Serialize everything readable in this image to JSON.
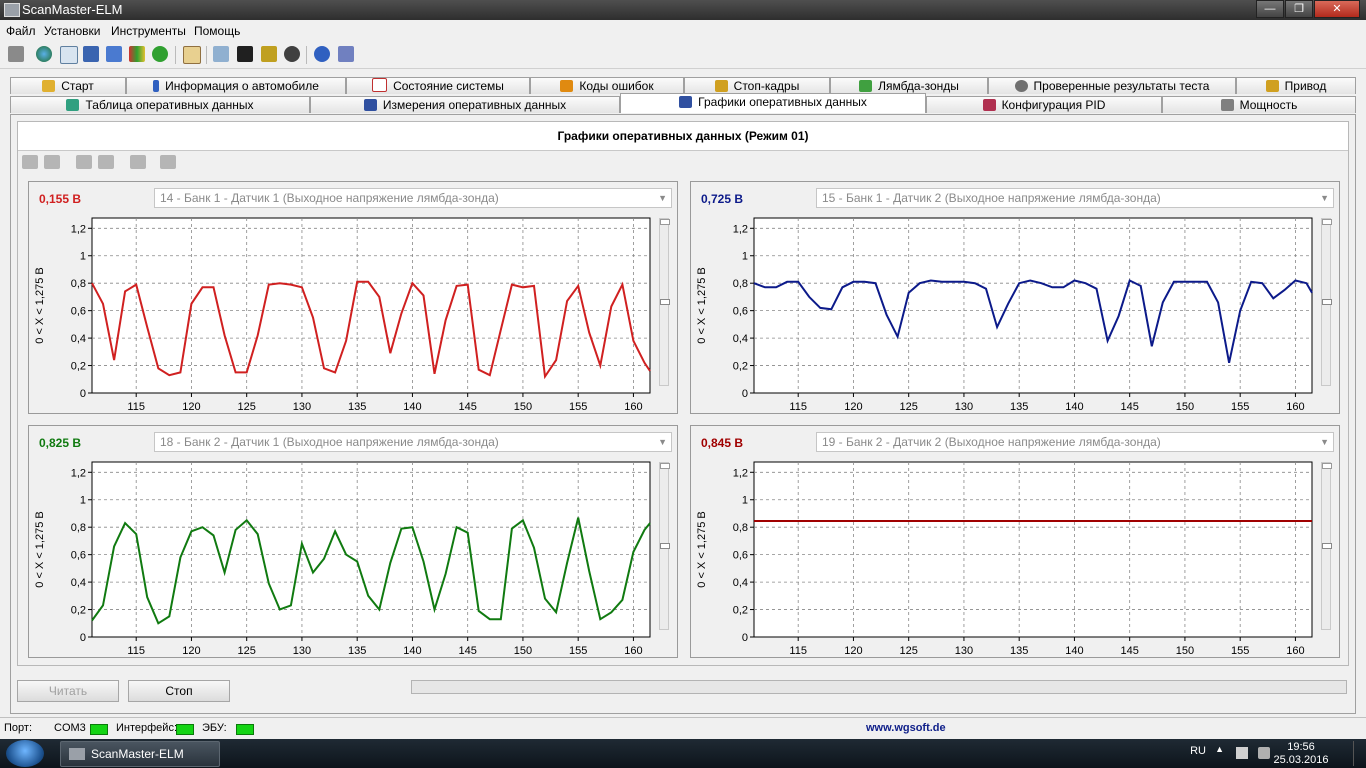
{
  "window": {
    "title": "ScanMaster-ELM",
    "controls": [
      "—",
      "❐",
      "✕"
    ]
  },
  "menu": [
    "Файл",
    "Установки",
    "Инструменты",
    "Помощь"
  ],
  "tabs_row1": [
    {
      "label": "Старт",
      "icon": "car-icon",
      "color": "#e0b030"
    },
    {
      "label": "Информация о автомобиле",
      "icon": "info-icon",
      "color": "#3060c0"
    },
    {
      "label": "Состояние системы",
      "icon": "checklist-icon",
      "color": "#c03030"
    },
    {
      "label": "Коды ошибок",
      "icon": "warning-icon",
      "color": "#e08a10"
    },
    {
      "label": "Стоп-кадры",
      "icon": "freeze-frame-icon",
      "color": "#d0a020"
    },
    {
      "label": "Лямбда-зонды",
      "icon": "sensor-icon",
      "color": "#40a040"
    },
    {
      "label": "Проверенные результаты теста",
      "icon": "gear-icon",
      "color": "#707070"
    },
    {
      "label": "Привод",
      "icon": "drive-icon",
      "color": "#d0a020"
    }
  ],
  "tabs_row2": [
    {
      "label": "Таблица оперативных данных",
      "icon": "table-icon",
      "color": "#30a080"
    },
    {
      "label": "Измерения оперативных данных",
      "icon": "grid-icon",
      "color": "#3050a0"
    },
    {
      "label": "Графики оперативных данных",
      "icon": "chart-icon",
      "color": "#3050a0",
      "active": true
    },
    {
      "label": "Конфигурация PID",
      "icon": "config-icon",
      "color": "#b03050"
    },
    {
      "label": "Мощность",
      "icon": "power-icon",
      "color": "#808080"
    }
  ],
  "page_title": "Графики оперативных данных (Режим 01)",
  "colors": {
    "red": "#d02020",
    "blue": "#0c1a8a",
    "green": "#107a10",
    "darkred": "#a00000"
  },
  "chart_data": [
    {
      "type": "line",
      "value_readout": "0,155 В",
      "sensor": "14 - Банк 1 - Датчик 1 (Выходное напряжение лямбда-зонда)",
      "ylabel": "0  < X <  1,275 В",
      "xlim": [
        111,
        161.5
      ],
      "ylim": [
        0,
        1.275
      ],
      "xticks": [
        115,
        120,
        125,
        130,
        135,
        140,
        145,
        150,
        155,
        160
      ],
      "yticks": [
        "0",
        "0,2",
        "0,4",
        "0,6",
        "0,8",
        "1",
        "1,2"
      ],
      "color": "#d02020",
      "x": [
        111,
        112,
        113,
        114,
        115,
        116,
        117,
        118,
        119,
        120,
        121,
        122,
        123,
        124,
        125,
        126,
        127,
        128,
        129,
        130,
        131,
        132,
        133,
        134,
        135,
        136,
        137,
        138,
        139,
        140,
        141,
        142,
        143,
        144,
        145,
        146,
        147,
        148,
        149,
        150,
        151,
        152,
        153,
        154,
        155,
        156,
        157,
        158,
        159,
        160,
        161,
        161.5
      ],
      "values": [
        0.8,
        0.65,
        0.24,
        0.74,
        0.79,
        0.48,
        0.18,
        0.13,
        0.15,
        0.65,
        0.77,
        0.77,
        0.42,
        0.15,
        0.15,
        0.42,
        0.79,
        0.8,
        0.79,
        0.77,
        0.55,
        0.18,
        0.15,
        0.38,
        0.81,
        0.81,
        0.7,
        0.29,
        0.58,
        0.8,
        0.71,
        0.14,
        0.53,
        0.78,
        0.79,
        0.17,
        0.13,
        0.46,
        0.79,
        0.77,
        0.78,
        0.12,
        0.24,
        0.67,
        0.78,
        0.44,
        0.2,
        0.63,
        0.79,
        0.38,
        0.22,
        0.16
      ]
    },
    {
      "type": "line",
      "value_readout": "0,725 В",
      "sensor": "15 - Банк 1 - Датчик 2 (Выходное напряжение лямбда-зонда)",
      "ylabel": "0  < X <  1,275 В",
      "xlim": [
        111,
        161.5
      ],
      "ylim": [
        0,
        1.275
      ],
      "xticks": [
        115,
        120,
        125,
        130,
        135,
        140,
        145,
        150,
        155,
        160
      ],
      "yticks": [
        "0",
        "0,2",
        "0,4",
        "0,6",
        "0,8",
        "1",
        "1,2"
      ],
      "color": "#0c1a8a",
      "x": [
        111,
        112,
        113,
        114,
        115,
        116,
        117,
        118,
        119,
        120,
        121,
        122,
        123,
        124,
        125,
        126,
        127,
        128,
        129,
        130,
        131,
        132,
        133,
        134,
        135,
        136,
        137,
        138,
        139,
        140,
        141,
        142,
        143,
        144,
        145,
        146,
        147,
        148,
        149,
        150,
        151,
        152,
        153,
        154,
        155,
        156,
        157,
        158,
        159,
        160,
        161,
        161.5
      ],
      "values": [
        0.8,
        0.77,
        0.77,
        0.81,
        0.81,
        0.7,
        0.62,
        0.61,
        0.77,
        0.81,
        0.81,
        0.8,
        0.57,
        0.41,
        0.73,
        0.8,
        0.82,
        0.81,
        0.81,
        0.81,
        0.8,
        0.76,
        0.48,
        0.65,
        0.8,
        0.82,
        0.8,
        0.77,
        0.77,
        0.82,
        0.8,
        0.76,
        0.38,
        0.56,
        0.82,
        0.78,
        0.34,
        0.66,
        0.81,
        0.81,
        0.81,
        0.81,
        0.66,
        0.22,
        0.6,
        0.81,
        0.8,
        0.69,
        0.75,
        0.82,
        0.8,
        0.73
      ]
    },
    {
      "type": "line",
      "value_readout": "0,825 В",
      "sensor": "18 - Банк 2 - Датчик 1 (Выходное напряжение лямбда-зонда)",
      "ylabel": "0  < X <  1,275 В",
      "xlim": [
        111,
        161.5
      ],
      "ylim": [
        0,
        1.275
      ],
      "xticks": [
        115,
        120,
        125,
        130,
        135,
        140,
        145,
        150,
        155,
        160
      ],
      "yticks": [
        "0",
        "0,2",
        "0,4",
        "0,6",
        "0,8",
        "1",
        "1,2"
      ],
      "color": "#107a10",
      "x": [
        111,
        112,
        113,
        114,
        115,
        116,
        117,
        118,
        119,
        120,
        121,
        122,
        123,
        124,
        125,
        126,
        127,
        128,
        129,
        130,
        131,
        132,
        133,
        134,
        135,
        136,
        137,
        138,
        139,
        140,
        141,
        142,
        143,
        144,
        145,
        146,
        147,
        148,
        149,
        150,
        151,
        152,
        153,
        154,
        155,
        156,
        157,
        158,
        159,
        160,
        161,
        161.5
      ],
      "values": [
        0.12,
        0.23,
        0.66,
        0.83,
        0.75,
        0.29,
        0.1,
        0.15,
        0.58,
        0.77,
        0.8,
        0.74,
        0.47,
        0.78,
        0.85,
        0.75,
        0.39,
        0.2,
        0.23,
        0.68,
        0.47,
        0.57,
        0.77,
        0.6,
        0.55,
        0.3,
        0.2,
        0.54,
        0.79,
        0.8,
        0.55,
        0.2,
        0.46,
        0.8,
        0.76,
        0.19,
        0.13,
        0.13,
        0.79,
        0.85,
        0.65,
        0.28,
        0.18,
        0.54,
        0.87,
        0.48,
        0.13,
        0.18,
        0.27,
        0.62,
        0.78,
        0.83
      ]
    },
    {
      "type": "line",
      "value_readout": "0,845 В",
      "sensor": "19 - Банк 2 - Датчик 2 (Выходное напряжение лямбда-зонда)",
      "ylabel": "0  < X <  1,275 В",
      "xlim": [
        111,
        161.5
      ],
      "ylim": [
        0,
        1.275
      ],
      "xticks": [
        115,
        120,
        125,
        130,
        135,
        140,
        145,
        150,
        155,
        160
      ],
      "yticks": [
        "0",
        "0,2",
        "0,4",
        "0,6",
        "0,8",
        "1",
        "1,2"
      ],
      "color": "#a00000",
      "x": [
        111,
        161.5
      ],
      "values": [
        0.845,
        0.845
      ]
    }
  ],
  "buttons": {
    "read": "Читать",
    "stop": "Стоп"
  },
  "status": {
    "port_label": "Порт:",
    "port_value": "COM3",
    "interface_label": "Интерфейс:",
    "ecu_label": "ЭБУ:",
    "url": "www.wgsoft.de"
  },
  "taskbar": {
    "app": "ScanMaster-ELM",
    "lang": "RU",
    "time": "19:56",
    "date": "25.03.2016"
  }
}
